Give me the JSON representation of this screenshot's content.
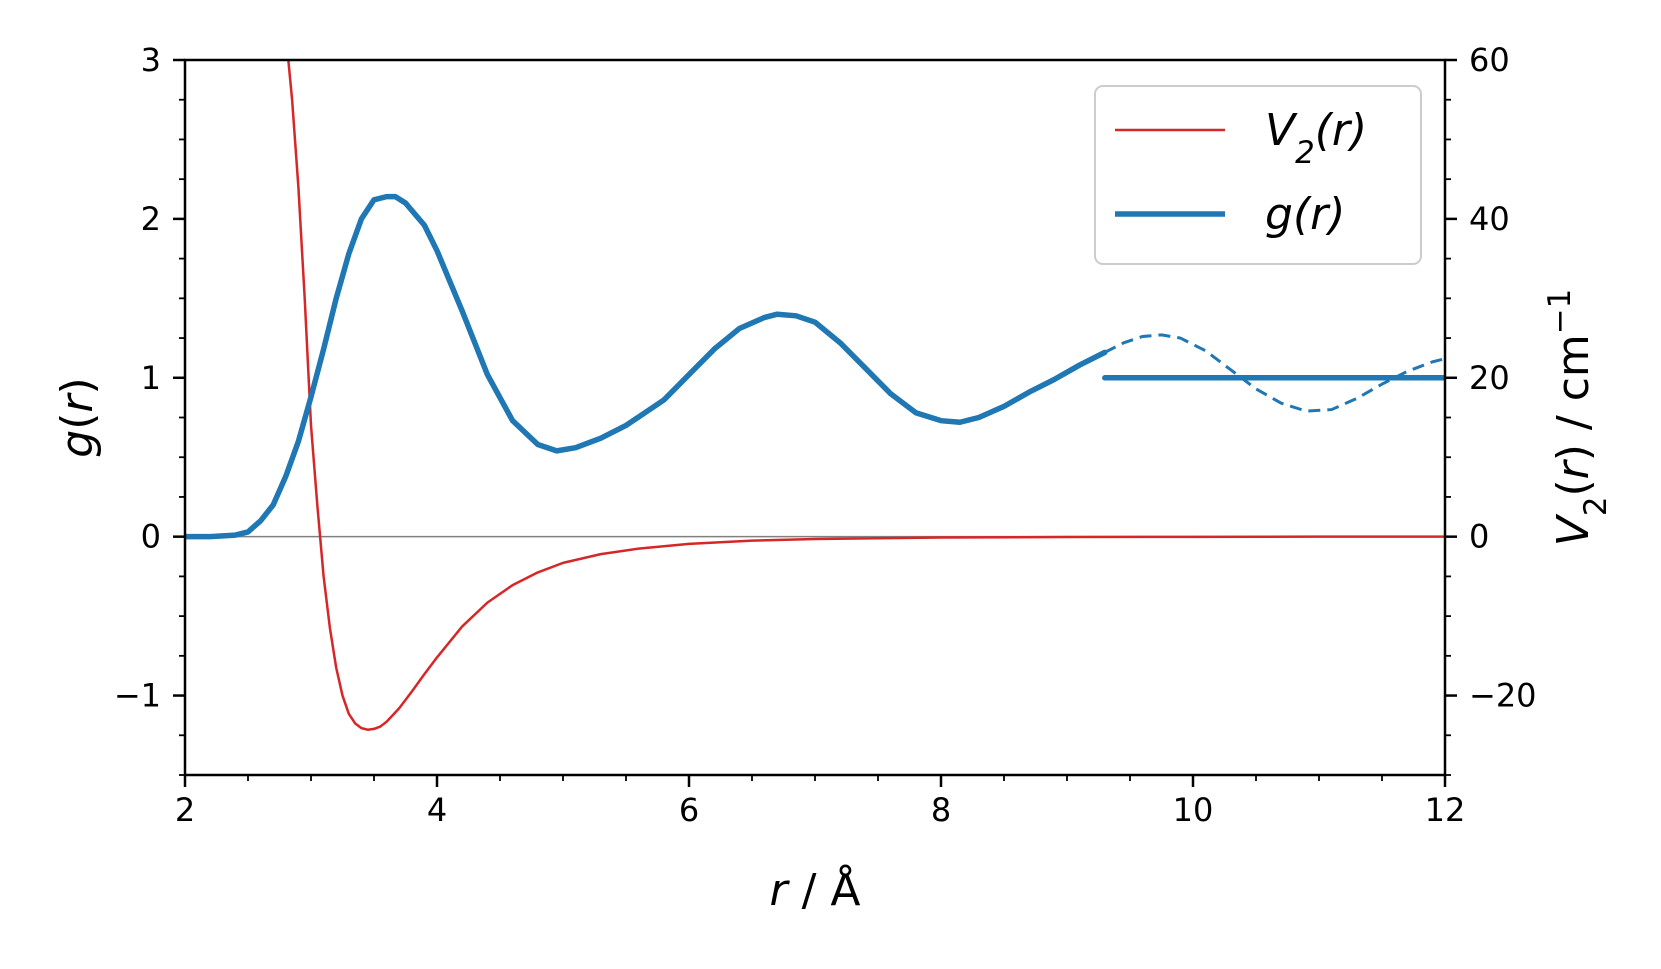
{
  "chart_data": {
    "type": "line",
    "xlabel": "r / Å",
    "ylabel_left": "g(r)",
    "ylabel_right": "V2(r) / cm−1",
    "xlim": [
      2,
      12
    ],
    "ylim_left": [
      -1.5,
      3
    ],
    "ylim_right": [
      -30,
      60
    ],
    "x_ticks": [
      2,
      4,
      6,
      8,
      10,
      12
    ],
    "x_tick_labels": [
      "2",
      "4",
      "6",
      "8",
      "10",
      "12"
    ],
    "y_ticks_left": [
      -1,
      0,
      1,
      2,
      3
    ],
    "y_tick_labels_left": [
      "−1",
      "0",
      "1",
      "2",
      "3"
    ],
    "y_ticks_right": [
      -20,
      0,
      20,
      40,
      60
    ],
    "y_tick_labels_right": [
      "−20",
      "0",
      "20",
      "40",
      "60"
    ],
    "grid": false,
    "legend_position": "top-right",
    "series": [
      {
        "name": "V2(r)",
        "axis": "right",
        "color": "#d62728",
        "style": "solid-thin",
        "x": [
          2.82,
          2.85,
          2.9,
          2.95,
          3.0,
          3.05,
          3.1,
          3.15,
          3.2,
          3.25,
          3.3,
          3.35,
          3.4,
          3.45,
          3.5,
          3.55,
          3.6,
          3.7,
          3.8,
          3.9,
          4.0,
          4.2,
          4.4,
          4.6,
          4.8,
          5.0,
          5.3,
          5.6,
          6.0,
          6.5,
          7.0,
          7.5,
          8.0,
          9.0,
          10.0,
          11.0,
          12.0
        ],
        "values": [
          60,
          55,
          44,
          30,
          14,
          4,
          -5,
          -11.5,
          -16.5,
          -20,
          -22.3,
          -23.5,
          -24.1,
          -24.3,
          -24.2,
          -23.9,
          -23.3,
          -21.6,
          -19.5,
          -17.3,
          -15.2,
          -11.3,
          -8.3,
          -6.1,
          -4.5,
          -3.3,
          -2.2,
          -1.5,
          -0.9,
          -0.5,
          -0.3,
          -0.2,
          -0.1,
          -0.05,
          -0.02,
          0,
          0
        ]
      },
      {
        "name": "g(r)",
        "axis": "left",
        "color": "#1f77b4",
        "style": "solid-thick",
        "x": [
          2.0,
          2.2,
          2.4,
          2.5,
          2.6,
          2.7,
          2.8,
          2.9,
          3.0,
          3.1,
          3.2,
          3.3,
          3.4,
          3.5,
          3.6,
          3.67,
          3.75,
          3.9,
          4.0,
          4.2,
          4.4,
          4.6,
          4.8,
          4.95,
          5.1,
          5.3,
          5.5,
          5.8,
          6.0,
          6.2,
          6.4,
          6.6,
          6.7,
          6.85,
          7.0,
          7.2,
          7.4,
          7.6,
          7.8,
          8.0,
          8.15,
          8.3,
          8.5,
          8.7,
          8.9,
          9.1,
          9.3
        ],
        "values": [
          0,
          0,
          0.01,
          0.03,
          0.1,
          0.2,
          0.38,
          0.6,
          0.88,
          1.18,
          1.5,
          1.78,
          2.0,
          2.12,
          2.14,
          2.14,
          2.1,
          1.96,
          1.8,
          1.42,
          1.02,
          0.73,
          0.58,
          0.54,
          0.56,
          0.62,
          0.7,
          0.86,
          1.02,
          1.18,
          1.31,
          1.38,
          1.4,
          1.39,
          1.35,
          1.22,
          1.06,
          0.9,
          0.78,
          0.73,
          0.72,
          0.75,
          0.82,
          0.91,
          0.99,
          1.08,
          1.16
        ]
      },
      {
        "name": "",
        "axis": "left",
        "color": "#1f77b4",
        "style": "dashed",
        "x": [
          9.3,
          9.45,
          9.6,
          9.75,
          9.9,
          10.1,
          10.3,
          10.5,
          10.7,
          10.9,
          11.1,
          11.3,
          11.5,
          11.7,
          11.9,
          12.0
        ],
        "values": [
          1.16,
          1.22,
          1.26,
          1.27,
          1.25,
          1.17,
          1.05,
          0.93,
          0.84,
          0.79,
          0.8,
          0.87,
          0.96,
          1.04,
          1.1,
          1.12
        ]
      },
      {
        "name": "",
        "axis": "left",
        "color": "#1f77b4",
        "style": "solid-thick",
        "x": [
          9.3,
          12.0
        ],
        "values": [
          1.0,
          1.0
        ]
      },
      {
        "name": "",
        "axis": "left",
        "color": "#808080",
        "style": "reference",
        "x": [
          2.0,
          12.0
        ],
        "values": [
          0,
          0
        ]
      }
    ],
    "legend": [
      {
        "label": "V2(r)",
        "color": "#d62728",
        "style": "solid-thin"
      },
      {
        "label": "g(r)",
        "color": "#1f77b4",
        "style": "solid-thick"
      }
    ]
  }
}
